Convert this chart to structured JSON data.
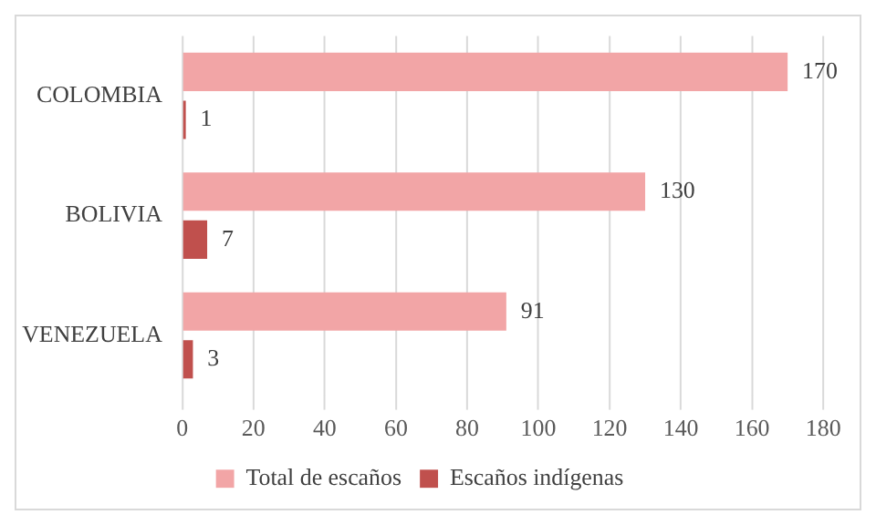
{
  "chart_data": {
    "type": "bar",
    "orientation": "horizontal",
    "categories": [
      "COLOMBIA",
      "BOLIVIA",
      "VENEZUELA"
    ],
    "series": [
      {
        "name": "Total de escaños",
        "color": "#f2a5a6",
        "values": [
          170,
          130,
          91
        ]
      },
      {
        "name": "Escaños indígenas",
        "color": "#c0504d",
        "values": [
          1,
          7,
          3
        ]
      }
    ],
    "xlim": [
      0,
      180
    ],
    "xticks": [
      0,
      20,
      40,
      60,
      80,
      100,
      120,
      140,
      160,
      180
    ],
    "grid": "x",
    "legend": "bottom",
    "data_labels": true
  }
}
